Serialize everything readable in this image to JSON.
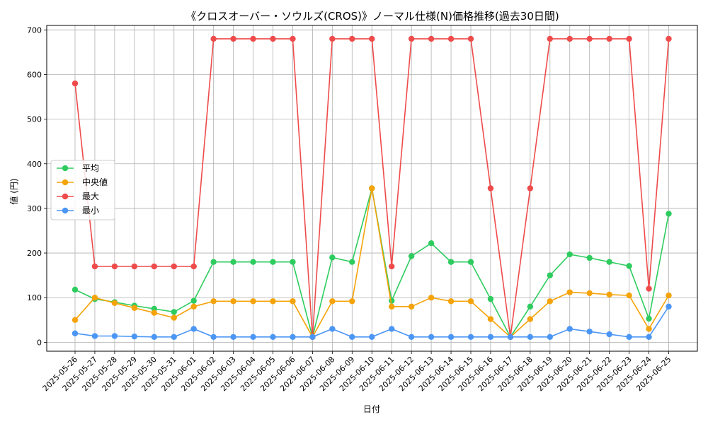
{
  "chart_data": {
    "type": "line",
    "title": "《クロスオーバー・ソウルズ(CROS)》ノーマル仕様(N)価格推移(過去30日間)",
    "xlabel": "日付",
    "ylabel": "値 (円)",
    "ylim": [
      -20,
      710
    ],
    "yticks": [
      0,
      100,
      200,
      300,
      400,
      500,
      600,
      700
    ],
    "grid": true,
    "legend_position": "center-left",
    "categories": [
      "2025-05-26",
      "2025-05-27",
      "2025-05-28",
      "2025-05-29",
      "2025-05-30",
      "2025-05-31",
      "2025-06-01",
      "2025-06-02",
      "2025-06-03",
      "2025-06-04",
      "2025-06-05",
      "2025-06-06",
      "2025-06-07",
      "2025-06-08",
      "2025-06-09",
      "2025-06-10",
      "2025-06-11",
      "2025-06-12",
      "2025-06-13",
      "2025-06-14",
      "2025-06-15",
      "2025-06-16",
      "2025-06-17",
      "2025-06-18",
      "2025-06-19",
      "2025-06-20",
      "2025-06-21",
      "2025-06-22",
      "2025-06-23",
      "2025-06-24",
      "2025-06-25"
    ],
    "series": [
      {
        "name": "平均",
        "color": "#2ecc5f",
        "values": [
          118,
          97,
          90,
          82,
          75,
          68,
          93,
          180,
          180,
          180,
          180,
          180,
          12,
          190,
          180,
          345,
          93,
          193,
          222,
          180,
          180,
          97,
          12,
          80,
          150,
          197,
          189,
          180,
          171,
          53,
          288
        ]
      },
      {
        "name": "中央値",
        "color": "#f5a30a",
        "values": [
          50,
          100,
          88,
          77,
          66,
          55,
          80,
          92,
          92,
          92,
          92,
          92,
          12,
          92,
          92,
          345,
          80,
          80,
          100,
          92,
          92,
          52,
          12,
          52,
          92,
          112,
          110,
          107,
          105,
          30,
          105
        ]
      },
      {
        "name": "最大",
        "color": "#ef4b4b",
        "values": [
          580,
          170,
          170,
          170,
          170,
          170,
          170,
          680,
          680,
          680,
          680,
          680,
          12,
          680,
          680,
          680,
          170,
          680,
          680,
          680,
          680,
          345,
          12,
          345,
          680,
          680,
          680,
          680,
          680,
          120,
          680
        ]
      },
      {
        "name": "最小",
        "color": "#4b96f5",
        "values": [
          20,
          14,
          14,
          13,
          12,
          12,
          30,
          12,
          12,
          12,
          12,
          12,
          12,
          30,
          12,
          12,
          30,
          12,
          12,
          12,
          12,
          12,
          12,
          12,
          12,
          30,
          24,
          18,
          12,
          12,
          80
        ]
      }
    ]
  }
}
